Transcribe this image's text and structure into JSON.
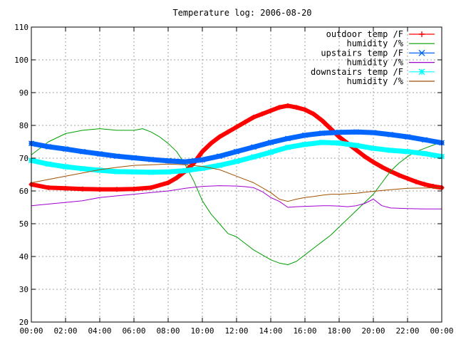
{
  "chart_data": {
    "type": "line",
    "title": "Temperature log: 2006-08-20",
    "xlabel": "",
    "ylabel": "",
    "xlim": [
      0,
      24
    ],
    "ylim": [
      20,
      110
    ],
    "grid": true,
    "legend_position": "top-right",
    "x_tick_labels": [
      "00:00",
      "02:00",
      "04:00",
      "06:00",
      "08:00",
      "10:00",
      "12:00",
      "14:00",
      "16:00",
      "18:00",
      "20:00",
      "22:00",
      "00:00"
    ],
    "y_tick_labels": [
      "20",
      "30",
      "40",
      "50",
      "60",
      "70",
      "80",
      "90",
      "100",
      "110"
    ],
    "series": [
      {
        "name": "outdoor temp /F",
        "color": "#ff0000",
        "marker": "plus",
        "x": [
          0,
          1,
          2,
          3,
          4,
          5,
          6,
          7,
          8,
          8.5,
          9,
          9.5,
          10,
          10.5,
          11,
          11.5,
          12,
          12.5,
          13,
          13.5,
          14,
          14.5,
          15,
          15.5,
          16,
          16.5,
          17,
          17.5,
          18,
          18.5,
          19,
          19.5,
          20,
          20.5,
          21,
          21.5,
          22,
          22.5,
          23,
          23.5,
          24
        ],
        "y": [
          62,
          61,
          60.8,
          60.6,
          60.5,
          60.5,
          60.6,
          61,
          62.5,
          64,
          66,
          68.5,
          72,
          74.5,
          76.5,
          78,
          79.5,
          81,
          82.5,
          83.5,
          84.5,
          85.5,
          86,
          85.5,
          84.8,
          83.5,
          81.5,
          79,
          76.5,
          74.5,
          72.5,
          70.5,
          68.8,
          67.3,
          66,
          64.8,
          63.8,
          62.8,
          62,
          61.4,
          61
        ]
      },
      {
        "name": "humidity /%",
        "color": "#00a000",
        "marker": "none",
        "x": [
          0,
          1,
          2,
          3,
          4,
          5,
          6,
          6.5,
          7,
          7.5,
          8,
          8.5,
          9,
          9.5,
          10,
          10.5,
          11,
          11.5,
          12,
          12.5,
          13,
          13.5,
          14,
          14.5,
          15,
          15.5,
          16,
          16.5,
          17,
          17.5,
          18,
          18.5,
          19,
          19.5,
          20,
          20.5,
          21,
          21.5,
          22,
          22.5,
          23,
          23.5,
          24
        ],
        "y": [
          71,
          75,
          77.5,
          78.5,
          79,
          78.5,
          78.5,
          79,
          78,
          76.5,
          74.5,
          72,
          68,
          63,
          57,
          53,
          50,
          47,
          46,
          44,
          42,
          40.5,
          39,
          38,
          37.5,
          38.5,
          40.5,
          42.5,
          44.5,
          46.5,
          49,
          51.5,
          54,
          56.5,
          59,
          62.5,
          66,
          68.5,
          70.5,
          72,
          73,
          74,
          75
        ]
      },
      {
        "name": "upstairs temp /F",
        "color": "#0066ff",
        "marker": "cross",
        "x": [
          0,
          1,
          2,
          3,
          4,
          5,
          6,
          7,
          8,
          9,
          10,
          11,
          12,
          13,
          14,
          15,
          16,
          17,
          18,
          19,
          20,
          21,
          22,
          23,
          24
        ],
        "y": [
          74.5,
          73.5,
          72.8,
          72,
          71.3,
          70.6,
          70.1,
          69.6,
          69.2,
          68.9,
          69.5,
          70.6,
          72,
          73.4,
          74.8,
          76,
          77,
          77.6,
          77.9,
          78,
          77.8,
          77.2,
          76.5,
          75.6,
          74.7
        ]
      },
      {
        "name": "humidity /%",
        "color": "#a000d0",
        "marker": "none",
        "x": [
          0,
          1,
          2,
          3,
          4,
          5,
          6,
          7,
          8,
          9,
          10,
          11,
          12,
          12.5,
          13,
          13.5,
          14,
          14.5,
          15,
          15.5,
          16,
          16.5,
          17,
          17.5,
          18,
          18.5,
          19,
          19.5,
          20,
          20.5,
          21,
          22,
          23,
          24
        ],
        "y": [
          55.5,
          56,
          56.5,
          57,
          58,
          58.5,
          59,
          59.5,
          60,
          60.8,
          61.4,
          61.6,
          61.5,
          61.3,
          61,
          59.8,
          58,
          56.8,
          55,
          55.2,
          55.3,
          55.4,
          55.5,
          55.5,
          55.4,
          55.2,
          55.5,
          56.2,
          57.5,
          55.5,
          54.8,
          54.6,
          54.5,
          54.5
        ]
      },
      {
        "name": "downstairs temp /F",
        "color": "#00ffff",
        "marker": "star",
        "x": [
          0,
          1,
          2,
          3,
          4,
          5,
          6,
          7,
          8,
          9,
          10,
          11,
          12,
          13,
          14,
          15,
          16,
          17,
          18,
          19,
          20,
          21,
          22,
          23,
          24
        ],
        "y": [
          69.3,
          68.2,
          67.4,
          66.8,
          66.3,
          65.9,
          65.8,
          65.7,
          65.8,
          66.2,
          66.9,
          67.8,
          69,
          70.4,
          71.8,
          73.3,
          74.2,
          74.8,
          74.6,
          73.9,
          73,
          72.4,
          72,
          71.4,
          70.5
        ]
      },
      {
        "name": "humidity /%",
        "color": "#a05000",
        "marker": "none",
        "x": [
          0,
          1,
          2,
          3,
          4,
          5,
          6,
          7,
          8,
          9,
          10,
          11,
          12,
          13,
          14,
          14.5,
          15,
          15.5,
          16,
          16.5,
          17,
          17.5,
          18,
          19,
          20,
          21,
          22,
          23,
          24
        ],
        "y": [
          62.5,
          63.5,
          64.5,
          65.5,
          66.5,
          67.2,
          67.8,
          68,
          68.2,
          68,
          67.5,
          66.5,
          64.5,
          62.5,
          59.5,
          57.5,
          56.8,
          57.5,
          58,
          58.3,
          58.7,
          59,
          59,
          59.3,
          59.9,
          60.4,
          60.8,
          60.9,
          61
        ]
      }
    ]
  }
}
